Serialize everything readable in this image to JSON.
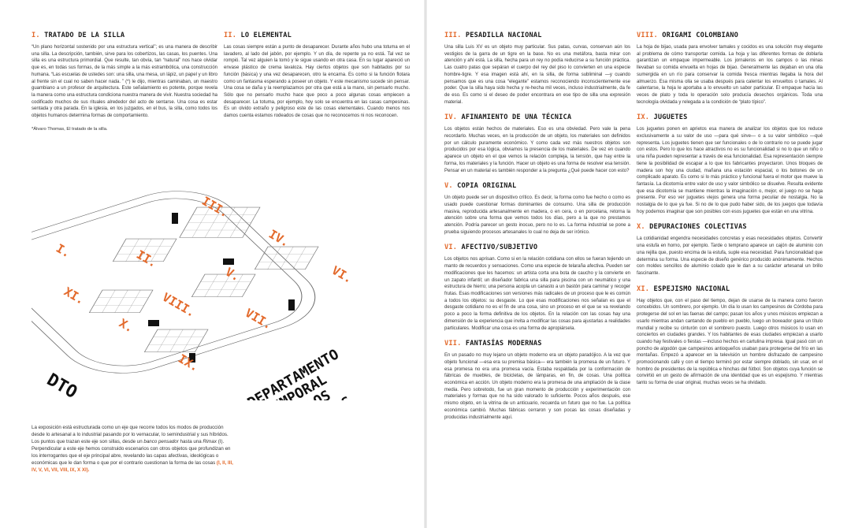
{
  "left_page": {
    "sec1": {
      "num": "I.",
      "title": "TRATADO DE LA SILLA",
      "body": "“Un plano horizontal sostenido por una estructura vertical”; es una manera de describir una silla. La descripción, también, sirve para los cobertizos, las casas, los puentes. Una silla es una estructura primordial. Que resulte, tan obvia, tan “natural” nos hace olvidar que es, en todas sus formas, de la más simple a la más estrambótica, una construcción humana. “Las escuelas de ustedes son: una silla, una mesa, un lápiz, un papel y un libro al frente sin el cual no saben hacer nada. ” (*) le dijo, mientras caminaban, un maestro guambiano a un profesor de arquitectura. Este señalamiento es potente, porque revela la manera como una estructura condiciona nuestra manera de vivir. Nuestra sociedad ha codificado muchos de sus rituales alrededor del acto de sentarse. Una cosa es estar sentada y otra parada. En la iglesia, en los juzgados, en el bus, la silla, como todos los objetos humanos deter­mina formas de comportamiento.",
      "footnote": "*Álvaro Thomas, El tratado de la silla."
    },
    "sec2": {
      "num": "II.",
      "title": "LO ELEMENTAL",
      "body": "Las cosas siempre están a punto de desaparecer. Durante años hubo una totuma en el lavadero, al lado del jabón, por ejemplo. Y un día, de repente ya no está. Tal vez se rompió. Tal vez alguien la tomó y le sigue usando en otra casa. En su lugar apareció un envase plástico de crema lavaloza. Hay ciertos objetos que son habitados por su función (básica) y una vez desaparecen, otro la encarna. Es como si la función flotara como un fantasma esperando a poseer un objeto. Y este mecanismo sucede sin pensar. Una cosa se daña y la reemplazamos por otra que está a la mano, sin pensarlo mucho. Sólo que no pensarlo mucho hace que poco a poco algunas cosas empiecen a desaparecer. La totuma, por ejemplo, hoy solo se encuentra en las casas campesinas. Es un olvido extraño y peligroso este de las cosas elementales. Cuando menos nos damos cuenta estamos rodeados de cosas que no reconocemos ni nos reconocen."
    },
    "diagram": {
      "numerals": [
        "I.",
        "II.",
        "III.",
        "IV.",
        "V.",
        "VI.",
        "VII.",
        "VIII.",
        "IX.",
        "X.",
        "XI."
      ],
      "logo": "DTO",
      "title_lines": [
        "DEPARTAMENTO",
        "TEMPORAL",
        "DE LOS",
        "OBJETOS"
      ]
    },
    "intro": {
      "text_a": "La exposición está estructurada como un eje que recorre todos los modos de producción desde lo artesanal a lo industrial pasando por lo vernacular, lo semindustrial y sus híbridos. Los puntos que trazan este eje son sillas, desde un ",
      "italic_a": "banco pensador",
      "text_b": " hasta una ",
      "italic_b": "Rimax",
      "text_c": " (I). Perpendicular a este eje hemos construido escenarios con otros objetos que profundizan en los interrogantes que el eje principal abre, revelando las capas afectivas, ideológicas o económicas que le dan forma o que por el contrario cuestionan la forma de las cosas ",
      "refs": "(I, II, III, IV, V, VI, VII, VIII, IX, X XI)."
    }
  },
  "right_page": {
    "col1": [
      {
        "num": "III.",
        "title": "PESADILLA NACIONAL",
        "body": "Una silla Luis XV es un objeto muy particular. Sus patas, curvas, conservan aún los vestigios de la garra de un tigre en la base. No es una metáfora, basta mirar con atención y ahí está. La silla, hecha para un rey no podía reducirse a su función práctica. Las cuatro patas que sepáran el cuerpo del rey del piso lo convierten en una especie hombre-tigre. Y esa imagen está ahí, en la silla, de forma subliminal —y cuando pensamos que es una cosa “elegante” estamos reconociendo inconscientemente ese poder. Que la silla haya sido hecha y re-hecha mil veces, incluso industrialmente, da fe de eso. Es como si el deseo de poder encontrara en ese tipo de silla una expresión material."
      },
      {
        "num": "IV.",
        "title": "AFINAMIENTO DE UNA TÉCNICA",
        "body": "Los objetos están hechos de materiales. Eso es una obviedad. Pero vale la pena recordarlo. Muchas veces, en la producción de un objeto, los materiales son definidos por un cálculo puramente económico. Y como cada vez más nuestros objetos son producidos por esa lógica, obviamos la presencia de los materiales. De vez en cuando aparece un objeto en el que vemos la relación compleja, la tensión, que hay entre la forma, los materiales y la función. Hacer un objeto es una forma de resolver esa tensión. Pensar en un material es también responder a la pregunta ¿Qué puede hacer con esto?"
      },
      {
        "num": "V.",
        "title": "COPIA ORIGINAL",
        "body": "Un objeto puede ser un dispositivo crítico. Es decir, la forma como fue hecho o como es usado puede cuestionar formas dominantes de consumo. Una silla de producción masiva, reproducida artesanalmente en madera, o en cera, o en porcelana, retorna la atención sobre una forma que vemos todos los días, pero a la que no prestamos atención. Podría parecer un gesto inocuo, pero no lo es. La forma industrial se pone a prueba siguien­do procesos artesanales lo cual no deja de ser irónico."
      },
      {
        "num": "VI.",
        "title": "AFECTIVO/SUBJETIVO",
        "body": "Los objetos nos aprisan. Como si en la relación cotidiana con ellos se fueran tejiendo un manto de recuerdos y sensaciones. Como una espe­cie de telaraña afectiva. Pueden ser modificaciones que les hacemos: un artista corta una bota de caucho y la convierte en un zapato infantil; un diseñador fabrica una silla para piscina con un neumático y una estructura de hierro; una persona acopla un canasto a un bastón para caminar y recoger frutas. Esas modificaciones son versiones más radi­cales de un proceso que le es común a todos los objetos: su desgaste. Lo que esas modificaciones nos señalan es que el desgaste cotidiano no es el fin de una cosa, sino un proceso en el que se va revelando poco a poco la forma definitiva de los objetos. En la relación con las cosas hay una dimensión de la experiencia que invita a modificar las cosas para ajustarlas a realidades particulares. Modificar una cosa es una forma de apropiársela."
      },
      {
        "num": "VII.",
        "title": "FANTASÍAS MODERNAS",
        "body": "En un pasado no muy lejano un objeto moderno era un objeto paradójico. A la vez que objeto funcional —esa era su premisa básica— era también la promesa de un futuro. Y esa promesa no era una promesa vacía. Estaba respaldada por la conformación de fábricas de muebles, de bicicletas, de lámparas, en fin, de cosas. Una política económica en acción. Un objeto moderno era la promesa de una ampliación de la clase media. Pero sobre­todo, fue un gran momento de producción y experimentación con mate­riales y formas que no ha sido valorado lo suficiente. Pocos años después, ese mismo objeto, en la vitrina de un anticuario, recuerda un futuro que no fue. La política económica cambió. Muchas fábricas cerraron y son pocas las cosas diseñadas y producidas industrialmente aquí."
      }
    ],
    "col2": [
      {
        "num": "VIII.",
        "title": "ORIGAMI COLOMBIANO",
        "body": "La hoja de bijao, usada para envolver tamales y cocidos es una solución muy elegante al problema de cómo transportar comida. La hoja y las diferentes formas de doblarla garantizan un empaque impermeable. Los jornaleros en los campos o las minas llevaban su comida envuelta en hojas de bijao. Generalmente las dejaban en una olla sumergida en un río para conservar la comida fresca mientras llegaba la hora del almuerzo. Esa misma olla se usaba después para calentar los envueltos o tamales. Al calentarse, la hoja le aportaba a lo envuelto un sabor particular. El empaque hacía las veces de plato y toda lo operación solo producía desechos orgánicos. Toda una tecnología olvidada y relegada a la condición de “plato típico”."
      },
      {
        "num": "IX.",
        "title": "JUGUETES",
        "body": "Los juguetes ponen en aprietos esa manera de analizar los objetos que los reduce exclusivamente a su valor de uso —para qué sirve— o a su valor simbólico —qué representa. Los juguetes tienen que ser funcionales o de lo contrario no se puede jugar con estos. Pero lo que los hace atractivos no es su funcionalidad si no lo que un niño o una niña pueden representar a tra­vés de esa funcionalidad. Esa representación siempre tiene la posibilidad de escapar a lo que los fabricantes proyectaron. Unos bloques de madera son hoy una ciudad, mañana una estación espacial, o los botones de un complicado aparato. Es como si lo más práctico y funcional fuera el motor que mueve la fantasía. La dicotomía entre valor de uso y valor simbólico se disuelve. Resulta evidente que esa dicotomía se mantiene mientras la imaginación o, mejor, el juego no se haga presente. Por eso ver juguetes viejos genera una forma peculiar de nostalgia. No la nostalgia de lo que ya fue. Si no de lo que pudo haber sido, de los juegos que todavía hoy podemos imaginar que son posibles con esos juguetes que están en una vitrina."
      },
      {
        "num": "X.",
        "title": "DEPURACIONES COLECTIVAS",
        "body": "La cotidianidad engendra necesidades concretas y esas necesidades objetos. Convertir una estufa en horno, por ejemplo. Tarde o temprano aparece un cajón de aluminio con una rejilla que, puesto encima de la estufa, suple esa necesidad. Para funcionalidad que determina su forma. Una especie de diseño genérico producido anónimamente. Hechos con moldes sencillos de aluminio colado que le dan a su carácter artesanal un brillo fascinante."
      },
      {
        "num": "XI.",
        "title": "ESPEJISMO NACIONAL",
        "body": "Hay objetos que, con el paso del tiempo, dejan de usarse de la manera como fueron concebidos. Un sombrero, por ejemplo. Un día lo usan los campesinos de Córdoba para protegerse del sol en las faenas del campo; pasan los años y unos músicos empiezan a usarlo mientras andan cantando de pueblo en pueblo, luego un boxeador gana un título mundial y recibe su cinturón con el sombrero puesto. Luego otros músicos lo usan en con­ciertos en ciudades grandes. Y los habitantes de esas ciudades empiezan a usarlo cuando hay festivales o fiestas —incluso hechos en cartulina impresa. Igual pasó con un poncho de algodón que campesinos antioqueños usaban para protegerse del frío en las montañas. Empezó a aparecer en la televisión un hombre disfrazado de campesino promocionando café y con el tiempo terminó por estar siempre doblado, sin usar, en el hombro de presidentes de la república e hinchas del fútbol. Son objetos cuya función se convirtió en un gesto de afirmación de una identidad que es un espejismo. Y mientras tanto su forma de usar original, muchas veces se ha olvidado."
      }
    ]
  },
  "colors": {
    "accent": "#e36a2c",
    "text": "#2a2a2a",
    "grid": "#777777"
  }
}
